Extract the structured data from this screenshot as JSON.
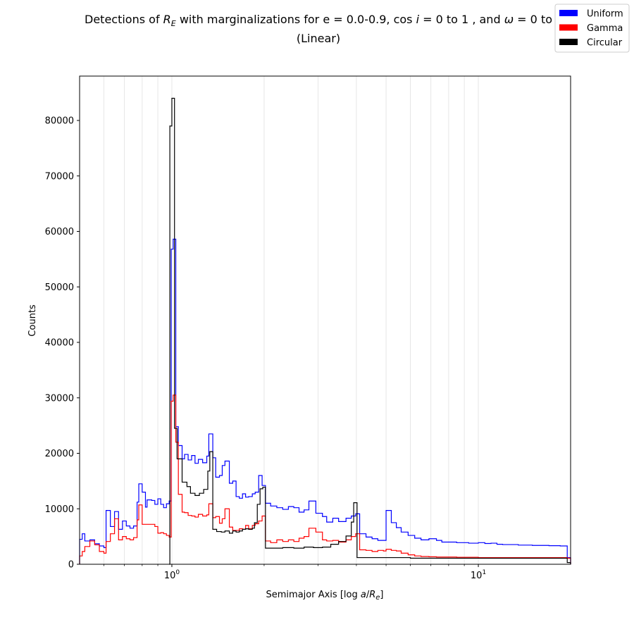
{
  "chart_data": {
    "type": "histogram-step",
    "title_line1_parts": [
      "Detections of ",
      "R",
      "E",
      " with marginalizations for e = 0.0-0.9, cos ",
      "i",
      " = 0 to 1 , and ",
      "ω",
      " = 0 to"
    ],
    "title_line2": "(Linear)",
    "xlabel_parts": [
      "Semimajor Axis [log ",
      "a",
      "/",
      "R",
      "e",
      "]"
    ],
    "ylabel": "Counts",
    "x_scale": "log",
    "xlim": [
      0.5,
      20
    ],
    "ylim": [
      0,
      88000
    ],
    "yticks": [
      0,
      10000,
      20000,
      30000,
      40000,
      50000,
      60000,
      70000,
      80000
    ],
    "ytick_labels": [
      "0",
      "10000",
      "20000",
      "30000",
      "40000",
      "50000",
      "60000",
      "70000",
      "80000"
    ],
    "xticks_major": [
      1,
      10
    ],
    "xtick_labels": [
      {
        "base": "10",
        "exp": "0"
      },
      {
        "base": "10",
        "exp": "1"
      }
    ],
    "xgrid_minor": [
      0.6,
      0.7,
      0.8,
      0.9,
      2,
      3,
      4,
      5,
      6,
      7,
      8,
      9
    ],
    "legend": {
      "placement": "top-right",
      "entries": [
        {
          "label": "Uniform",
          "color": "#0000ff"
        },
        {
          "label": "Gamma",
          "color": "#ff0000"
        },
        {
          "label": "Circular",
          "color": "#000000"
        }
      ]
    },
    "series": [
      {
        "name": "Uniform",
        "color": "#0000ff",
        "points": [
          [
            0.5,
            4500
          ],
          [
            0.51,
            5500
          ],
          [
            0.52,
            4200
          ],
          [
            0.54,
            4400
          ],
          [
            0.56,
            3700
          ],
          [
            0.58,
            3300
          ],
          [
            0.6,
            3000
          ],
          [
            0.61,
            9700
          ],
          [
            0.63,
            6800
          ],
          [
            0.65,
            9500
          ],
          [
            0.67,
            6300
          ],
          [
            0.69,
            7800
          ],
          [
            0.71,
            6900
          ],
          [
            0.73,
            6500
          ],
          [
            0.75,
            6900
          ],
          [
            0.77,
            11200
          ],
          [
            0.78,
            14500
          ],
          [
            0.8,
            13000
          ],
          [
            0.82,
            10300
          ],
          [
            0.83,
            11600
          ],
          [
            0.86,
            11500
          ],
          [
            0.88,
            10800
          ],
          [
            0.9,
            11800
          ],
          [
            0.92,
            10800
          ],
          [
            0.94,
            10200
          ],
          [
            0.96,
            10900
          ],
          [
            0.98,
            11400
          ],
          [
            0.995,
            56800
          ],
          [
            1.01,
            58600
          ],
          [
            1.03,
            24800
          ],
          [
            1.05,
            21400
          ],
          [
            1.08,
            19000
          ],
          [
            1.1,
            19800
          ],
          [
            1.13,
            18800
          ],
          [
            1.16,
            19600
          ],
          [
            1.19,
            18200
          ],
          [
            1.22,
            18900
          ],
          [
            1.26,
            18300
          ],
          [
            1.3,
            19500
          ],
          [
            1.32,
            23500
          ],
          [
            1.36,
            19200
          ],
          [
            1.39,
            15700
          ],
          [
            1.43,
            16000
          ],
          [
            1.46,
            17800
          ],
          [
            1.49,
            18600
          ],
          [
            1.54,
            14600
          ],
          [
            1.58,
            15000
          ],
          [
            1.62,
            12200
          ],
          [
            1.66,
            11900
          ],
          [
            1.7,
            12700
          ],
          [
            1.74,
            12100
          ],
          [
            1.78,
            12200
          ],
          [
            1.83,
            12700
          ],
          [
            1.87,
            13000
          ],
          [
            1.92,
            16000
          ],
          [
            1.97,
            14200
          ],
          [
            2.02,
            11000
          ],
          [
            2.1,
            10500
          ],
          [
            2.2,
            10200
          ],
          [
            2.3,
            9900
          ],
          [
            2.4,
            10400
          ],
          [
            2.5,
            10200
          ],
          [
            2.6,
            9400
          ],
          [
            2.7,
            9800
          ],
          [
            2.8,
            11400
          ],
          [
            2.95,
            9200
          ],
          [
            3.1,
            8600
          ],
          [
            3.2,
            7600
          ],
          [
            3.35,
            8300
          ],
          [
            3.5,
            7700
          ],
          [
            3.7,
            8300
          ],
          [
            3.85,
            8700
          ],
          [
            3.98,
            9100
          ],
          [
            4.1,
            5500
          ],
          [
            4.3,
            4900
          ],
          [
            4.5,
            4600
          ],
          [
            4.7,
            4300
          ],
          [
            4.9,
            4300
          ],
          [
            5.0,
            9700
          ],
          [
            5.2,
            7500
          ],
          [
            5.4,
            6600
          ],
          [
            5.6,
            5800
          ],
          [
            5.9,
            5200
          ],
          [
            6.2,
            4700
          ],
          [
            6.5,
            4400
          ],
          [
            6.9,
            4600
          ],
          [
            7.3,
            4300
          ],
          [
            7.6,
            4000
          ],
          [
            8.5,
            3900
          ],
          [
            9.3,
            3800
          ],
          [
            10.0,
            3900
          ],
          [
            10.5,
            3750
          ],
          [
            11.0,
            3800
          ],
          [
            11.5,
            3600
          ],
          [
            12.0,
            3550
          ],
          [
            13.5,
            3450
          ],
          [
            15.0,
            3400
          ],
          [
            17.0,
            3350
          ],
          [
            18.5,
            3300
          ],
          [
            19.5,
            1200
          ],
          [
            20,
            0
          ]
        ]
      },
      {
        "name": "Gamma",
        "color": "#ff0000",
        "points": [
          [
            0.5,
            1500
          ],
          [
            0.51,
            2300
          ],
          [
            0.52,
            3200
          ],
          [
            0.54,
            4200
          ],
          [
            0.56,
            3500
          ],
          [
            0.58,
            2300
          ],
          [
            0.6,
            2000
          ],
          [
            0.61,
            4100
          ],
          [
            0.63,
            5500
          ],
          [
            0.65,
            8200
          ],
          [
            0.67,
            4400
          ],
          [
            0.69,
            5000
          ],
          [
            0.71,
            4600
          ],
          [
            0.73,
            4400
          ],
          [
            0.75,
            4800
          ],
          [
            0.77,
            8000
          ],
          [
            0.78,
            10700
          ],
          [
            0.8,
            7200
          ],
          [
            0.82,
            7200
          ],
          [
            0.86,
            7200
          ],
          [
            0.88,
            6800
          ],
          [
            0.9,
            5600
          ],
          [
            0.92,
            5700
          ],
          [
            0.94,
            5500
          ],
          [
            0.96,
            5200
          ],
          [
            0.98,
            4900
          ],
          [
            0.995,
            29400
          ],
          [
            1.01,
            30500
          ],
          [
            1.03,
            22000
          ],
          [
            1.05,
            12600
          ],
          [
            1.08,
            9400
          ],
          [
            1.1,
            9300
          ],
          [
            1.13,
            8800
          ],
          [
            1.16,
            8700
          ],
          [
            1.19,
            8500
          ],
          [
            1.22,
            9000
          ],
          [
            1.26,
            8700
          ],
          [
            1.3,
            8900
          ],
          [
            1.32,
            10900
          ],
          [
            1.36,
            8400
          ],
          [
            1.39,
            8600
          ],
          [
            1.43,
            7400
          ],
          [
            1.46,
            8200
          ],
          [
            1.49,
            10000
          ],
          [
            1.54,
            6700
          ],
          [
            1.58,
            6100
          ],
          [
            1.62,
            6100
          ],
          [
            1.66,
            6400
          ],
          [
            1.7,
            6300
          ],
          [
            1.74,
            7000
          ],
          [
            1.78,
            6400
          ],
          [
            1.83,
            7000
          ],
          [
            1.87,
            7300
          ],
          [
            1.92,
            7800
          ],
          [
            1.97,
            8700
          ],
          [
            2.02,
            4200
          ],
          [
            2.1,
            3900
          ],
          [
            2.2,
            4400
          ],
          [
            2.3,
            4100
          ],
          [
            2.4,
            4400
          ],
          [
            2.5,
            4100
          ],
          [
            2.6,
            4700
          ],
          [
            2.7,
            5000
          ],
          [
            2.8,
            6500
          ],
          [
            2.95,
            5800
          ],
          [
            3.1,
            4400
          ],
          [
            3.2,
            4200
          ],
          [
            3.35,
            4300
          ],
          [
            3.5,
            4000
          ],
          [
            3.7,
            4400
          ],
          [
            3.85,
            5000
          ],
          [
            3.98,
            5500
          ],
          [
            4.1,
            2600
          ],
          [
            4.3,
            2500
          ],
          [
            4.5,
            2300
          ],
          [
            4.7,
            2500
          ],
          [
            4.9,
            2400
          ],
          [
            5.0,
            2700
          ],
          [
            5.2,
            2500
          ],
          [
            5.4,
            2400
          ],
          [
            5.6,
            2000
          ],
          [
            5.9,
            1700
          ],
          [
            6.2,
            1500
          ],
          [
            6.5,
            1400
          ],
          [
            6.9,
            1350
          ],
          [
            7.3,
            1300
          ],
          [
            7.6,
            1300
          ],
          [
            8.5,
            1250
          ],
          [
            9.3,
            1250
          ],
          [
            10.0,
            1200
          ],
          [
            12.0,
            1200
          ],
          [
            15.0,
            1200
          ],
          [
            18.5,
            1200
          ],
          [
            19.5,
            1100
          ],
          [
            20,
            0
          ]
        ]
      },
      {
        "name": "Circular",
        "color": "#000000",
        "points": [
          [
            0.98,
            0
          ],
          [
            0.985,
            79000
          ],
          [
            1.0,
            84000
          ],
          [
            1.02,
            24500
          ],
          [
            1.04,
            19000
          ],
          [
            1.08,
            14800
          ],
          [
            1.12,
            14000
          ],
          [
            1.15,
            12800
          ],
          [
            1.19,
            12400
          ],
          [
            1.23,
            12800
          ],
          [
            1.27,
            13500
          ],
          [
            1.31,
            16800
          ],
          [
            1.33,
            20300
          ],
          [
            1.36,
            6300
          ],
          [
            1.4,
            5900
          ],
          [
            1.45,
            5800
          ],
          [
            1.49,
            6000
          ],
          [
            1.54,
            5600
          ],
          [
            1.58,
            6000
          ],
          [
            1.62,
            5800
          ],
          [
            1.66,
            6000
          ],
          [
            1.7,
            6300
          ],
          [
            1.74,
            6400
          ],
          [
            1.78,
            6300
          ],
          [
            1.83,
            6500
          ],
          [
            1.86,
            7500
          ],
          [
            1.9,
            10800
          ],
          [
            1.94,
            13600
          ],
          [
            1.98,
            13900
          ],
          [
            2.02,
            2900
          ],
          [
            2.15,
            2900
          ],
          [
            2.3,
            3000
          ],
          [
            2.5,
            2900
          ],
          [
            2.7,
            3100
          ],
          [
            2.9,
            3000
          ],
          [
            3.1,
            3100
          ],
          [
            3.3,
            3600
          ],
          [
            3.5,
            4100
          ],
          [
            3.7,
            5100
          ],
          [
            3.85,
            7600
          ],
          [
            3.92,
            11100
          ],
          [
            4.02,
            1200
          ],
          [
            6.0,
            1100
          ],
          [
            9.0,
            1100
          ],
          [
            12.0,
            1100
          ],
          [
            15.0,
            1100
          ],
          [
            18.5,
            1100
          ],
          [
            19.5,
            300
          ],
          [
            20,
            0
          ]
        ]
      }
    ]
  }
}
